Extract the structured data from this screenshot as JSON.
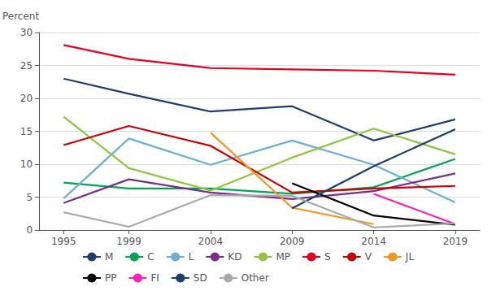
{
  "chart_data": {
    "type": "line",
    "ylabel": "Percent",
    "x": [
      1995,
      1999,
      2004,
      2009,
      2014,
      2019
    ],
    "series": [
      {
        "name": "M",
        "color": "#1f3d6e",
        "values": [
          23.0,
          20.7,
          18.0,
          18.8,
          13.6,
          16.8
        ]
      },
      {
        "name": "C",
        "color": "#00a651",
        "values": [
          7.2,
          6.3,
          6.3,
          5.5,
          6.5,
          10.8
        ]
      },
      {
        "name": "L",
        "color": "#6baed6",
        "values": [
          4.8,
          13.9,
          9.9,
          13.6,
          9.9,
          4.2
        ]
      },
      {
        "name": "KD",
        "color": "#7b2d8b",
        "values": [
          4.1,
          7.7,
          5.7,
          4.7,
          5.9,
          8.6
        ]
      },
      {
        "name": "MP",
        "color": "#8dc63f",
        "values": [
          17.2,
          9.4,
          6.0,
          11.0,
          15.4,
          11.5
        ]
      },
      {
        "name": "S",
        "color": "#e8001e",
        "values": [
          28.1,
          26.0,
          24.6,
          24.4,
          24.2,
          23.6
        ]
      },
      {
        "name": "V",
        "color": "#cc0000",
        "values": [
          12.9,
          15.8,
          12.8,
          5.7,
          6.3,
          6.7
        ]
      },
      {
        "name": "JL",
        "color": "#f7941d",
        "values": [
          null,
          null,
          14.8,
          3.4,
          0.9,
          null
        ]
      },
      {
        "name": "PP",
        "color": "#000000",
        "values": [
          null,
          null,
          null,
          7.1,
          2.2,
          0.8
        ]
      },
      {
        "name": "FI",
        "color": "#ff1fba",
        "values": [
          null,
          null,
          null,
          null,
          5.5,
          0.9
        ]
      },
      {
        "name": "SD",
        "color": "#1a3f6f",
        "values": [
          null,
          null,
          null,
          3.3,
          9.7,
          15.3
        ]
      },
      {
        "name": "Other",
        "color": "#aaaaaa",
        "values": [
          2.7,
          0.5,
          5.3,
          5.2,
          0.4,
          1.0
        ]
      }
    ],
    "xlim": [
      1993.5,
      2020.5
    ],
    "xticks": [
      1995,
      1999,
      2004,
      2009,
      2014,
      2019
    ],
    "ylim": [
      0,
      30
    ],
    "yticks": [
      0,
      5,
      10,
      15,
      20,
      25,
      30
    ],
    "grid": true,
    "legend": "bottom"
  }
}
